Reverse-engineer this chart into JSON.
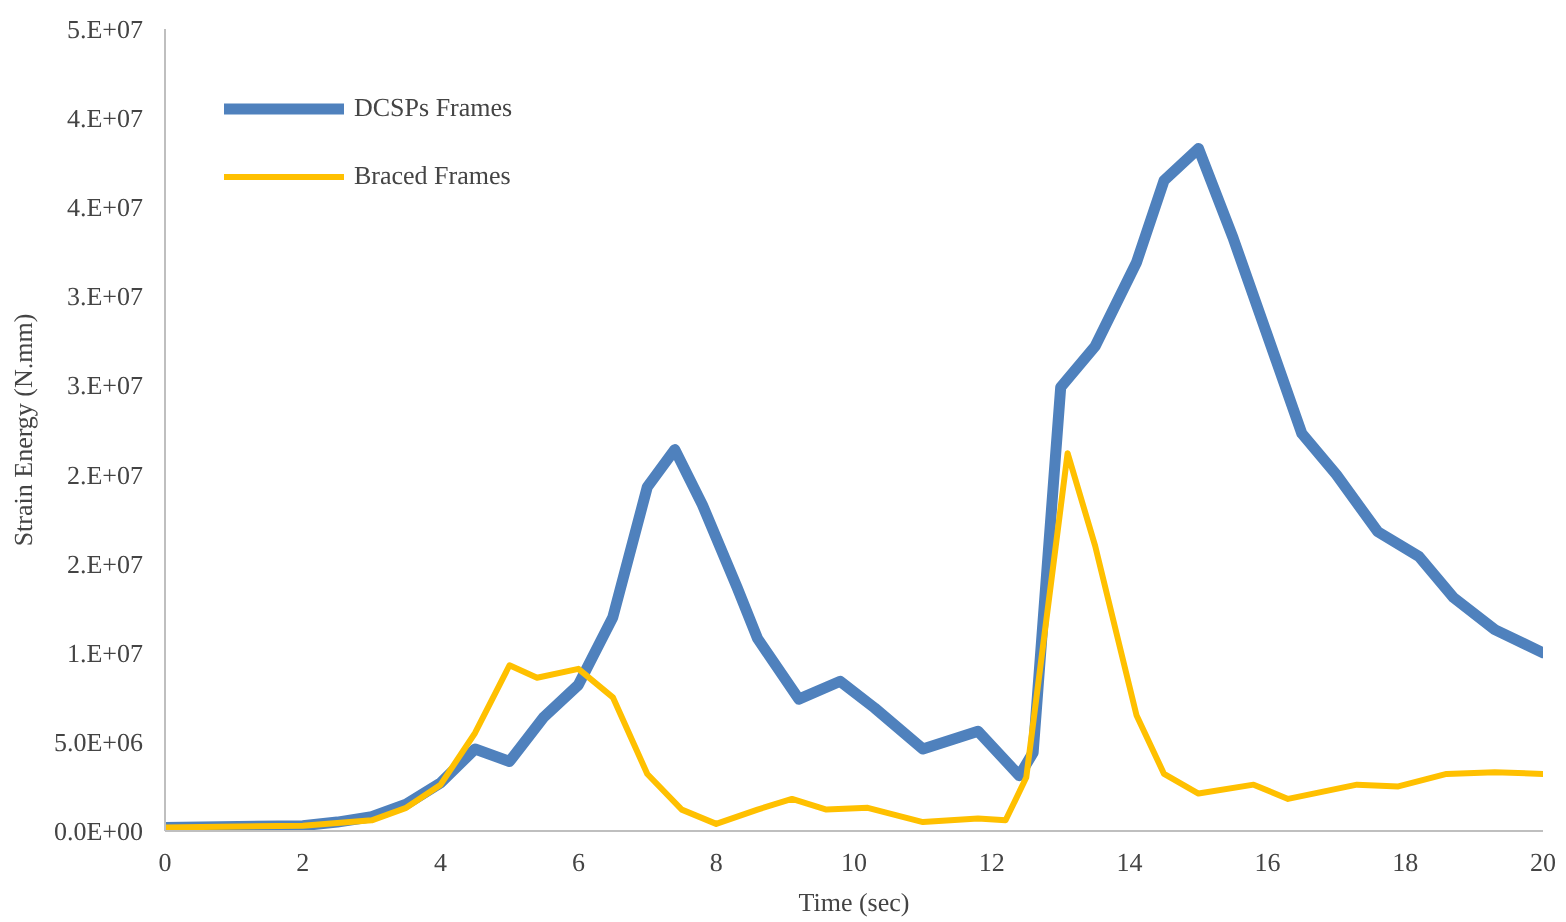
{
  "chart_data": {
    "type": "line",
    "xlabel": "Time (sec)",
    "ylabel": "Strain Energy (N.mm)",
    "xlim": [
      0,
      20
    ],
    "xticks": [
      0,
      2,
      4,
      6,
      8,
      10,
      12,
      14,
      16,
      18,
      20
    ],
    "ylim": [
      0,
      45000000
    ],
    "yticks": [
      {
        "value": 0,
        "label": "0.0E+00"
      },
      {
        "value": 5000000,
        "label": "5.0E+06"
      },
      {
        "value": 10000000,
        "label": "1.E+07"
      },
      {
        "value": 15000000,
        "label": "2.E+07"
      },
      {
        "value": 20000000,
        "label": "2.E+07"
      },
      {
        "value": 25000000,
        "label": "3.E+07"
      },
      {
        "value": 30000000,
        "label": "3.E+07"
      },
      {
        "value": 35000000,
        "label": "4.E+07"
      },
      {
        "value": 40000000,
        "label": "4.E+07"
      },
      {
        "value": 45000000,
        "label": "5.E+07"
      }
    ],
    "grid": false,
    "legend": "top left",
    "line_style": "solid",
    "series": [
      {
        "name": "DCSPs Frames",
        "color": "#4f81bd",
        "x": [
          0,
          2,
          2.5,
          3,
          3.5,
          4,
          4.5,
          5,
          5.5,
          6,
          6.5,
          7,
          7.4,
          7.8,
          8.3,
          8.6,
          9.2,
          9.8,
          10.3,
          11,
          11.8,
          12.4,
          12.6,
          13,
          13.5,
          14.1,
          14.5,
          15,
          15.5,
          16.5,
          17,
          17.6,
          18.2,
          18.7,
          19.3,
          20
        ],
        "values": [
          200000,
          300000,
          500000,
          800000,
          1500000,
          2700000,
          4600000,
          3900000,
          6400000,
          8200000,
          12000000,
          19300000,
          21400000,
          18300000,
          13700000,
          10800000,
          7400000,
          8400000,
          6900000,
          4600000,
          5600000,
          3100000,
          4400000,
          24900000,
          27200000,
          31900000,
          36500000,
          38300000,
          33300000,
          22300000,
          20000000,
          16800000,
          15400000,
          13100000,
          11300000,
          10000000
        ]
      },
      {
        "name": "Braced Frames",
        "color": "#ffc000",
        "x": [
          0,
          2,
          3,
          3.5,
          4,
          4.5,
          5,
          5.4,
          6,
          6.5,
          7,
          7.5,
          8,
          8.6,
          9.1,
          9.6,
          10.2,
          11,
          11.8,
          12.2,
          12.5,
          13.1,
          13.5,
          14.1,
          14.5,
          15,
          15.8,
          16.3,
          17.3,
          17.9,
          18.6,
          19.3,
          20
        ],
        "values": [
          200000,
          300000,
          600000,
          1300000,
          2600000,
          5500000,
          9300000,
          8600000,
          9100000,
          7500000,
          3200000,
          1200000,
          400000,
          1200000,
          1800000,
          1200000,
          1300000,
          500000,
          700000,
          600000,
          3000000,
          21200000,
          16000000,
          6500000,
          3200000,
          2100000,
          2600000,
          1800000,
          2600000,
          2500000,
          3200000,
          3300000,
          3200000
        ]
      }
    ]
  }
}
